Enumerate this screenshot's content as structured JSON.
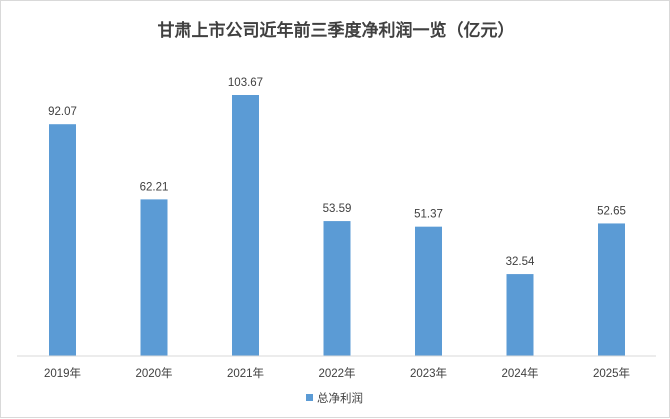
{
  "chart_data": {
    "type": "bar",
    "title": "甘肃上市公司近年前三季度净利润一览（亿元）",
    "categories": [
      "2019年",
      "2020年",
      "2021年",
      "2022年",
      "2023年",
      "2024年",
      "2025年"
    ],
    "series": [
      {
        "name": "总净利润",
        "values": [
          92.07,
          62.21,
          103.67,
          53.59,
          51.37,
          32.54,
          52.65
        ],
        "color": "#5b9bd5"
      }
    ],
    "data_labels": [
      "92.07",
      "62.21",
      "103.67",
      "53.59",
      "51.37",
      "32.54",
      "52.65"
    ],
    "xlabel": "",
    "ylabel": "",
    "ylim": [
      0,
      110
    ],
    "grid": false,
    "legend": "bottom"
  }
}
